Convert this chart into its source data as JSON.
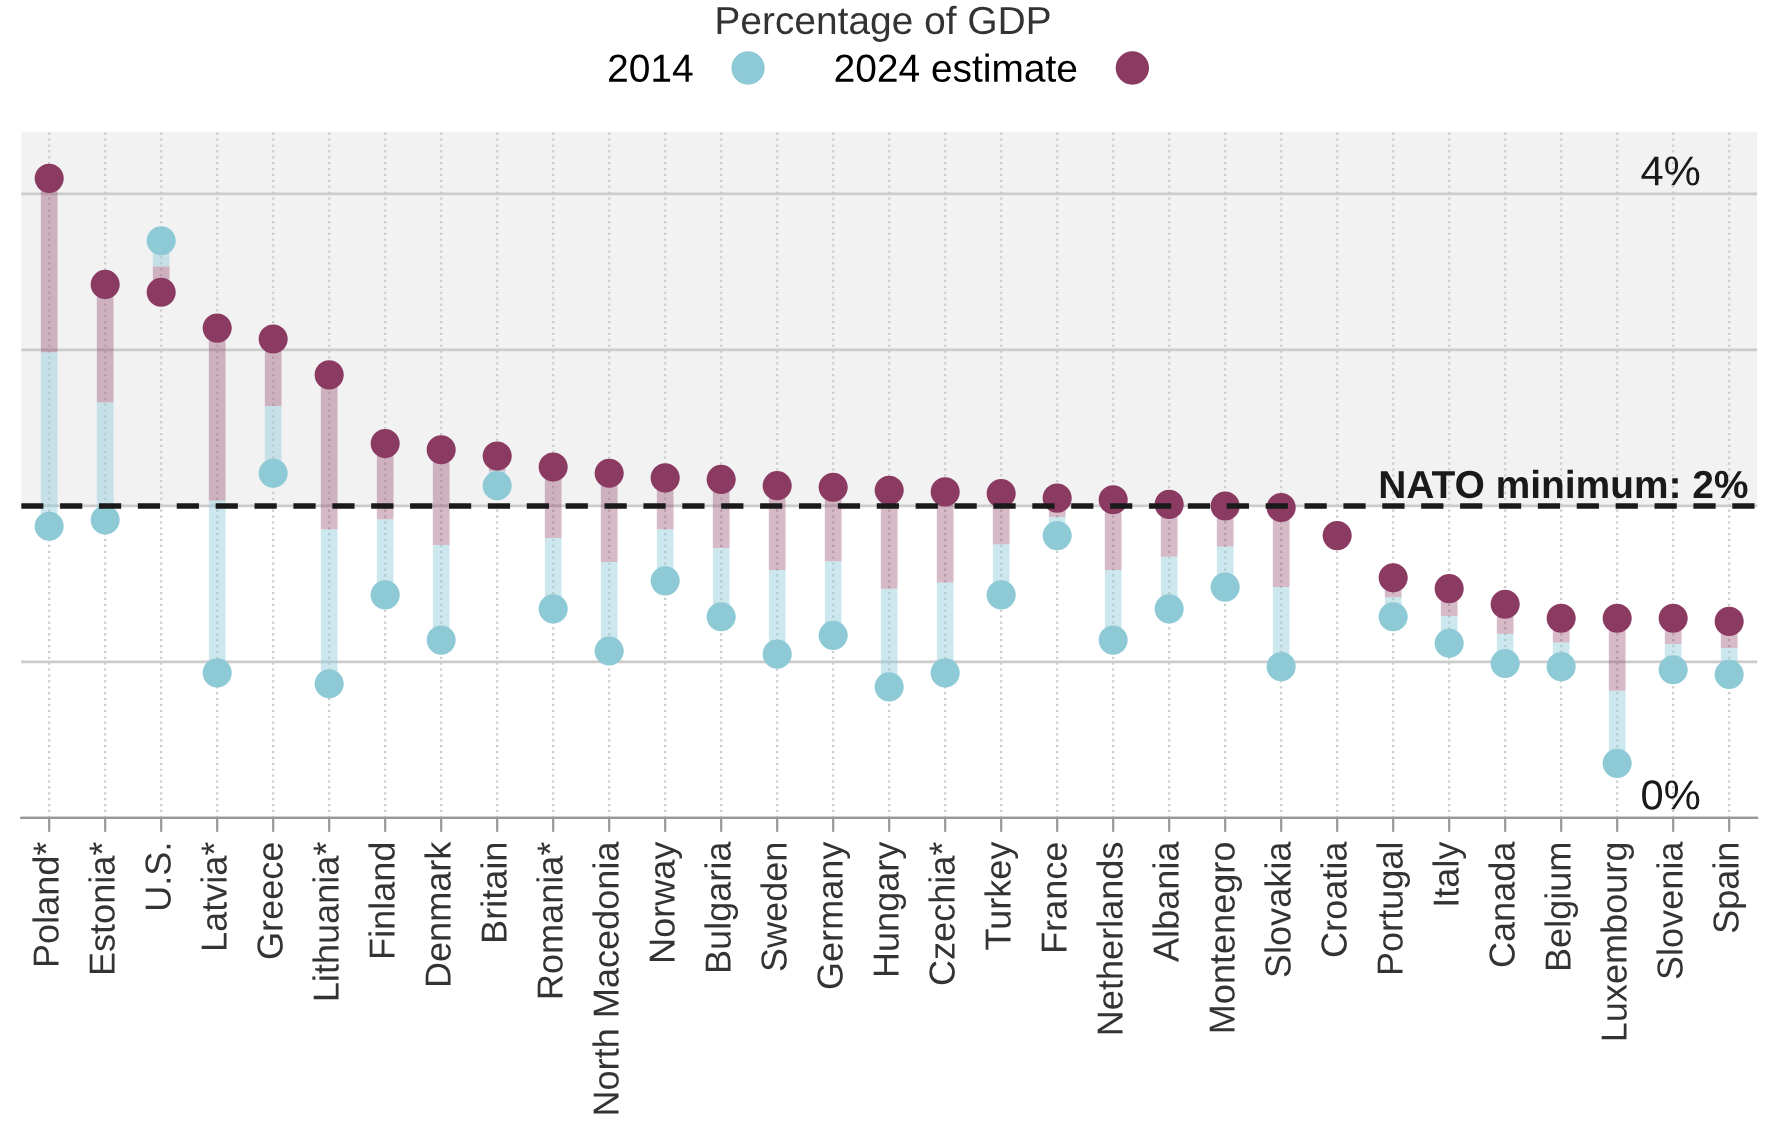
{
  "chart_data": {
    "type": "scatter",
    "title": "Percentage of GDP",
    "categories": [
      "Poland*",
      "Estonia*",
      "U.S.",
      "Latvia*",
      "Greece",
      "Lithuania*",
      "Finland",
      "Denmark",
      "Britain",
      "Romania*",
      "North Macedonia",
      "Norway",
      "Bulgaria",
      "Sweden",
      "Germany",
      "Hungary",
      "Czechia*",
      "Turkey",
      "France",
      "Netherlands",
      "Albania",
      "Montenegro",
      "Slovakia",
      "Croatia",
      "Portugal",
      "Italy",
      "Canada",
      "Belgium",
      "Luxembourg",
      "Slovenia",
      "Spain"
    ],
    "series": [
      {
        "name": "2014",
        "color": "#8ecad6",
        "values": [
          1.87,
          1.91,
          3.7,
          0.93,
          2.21,
          0.86,
          1.43,
          1.14,
          2.13,
          1.34,
          1.07,
          1.52,
          1.29,
          1.05,
          1.17,
          0.84,
          0.93,
          1.43,
          1.81,
          1.14,
          1.34,
          1.48,
          0.97,
          null,
          1.29,
          1.12,
          0.99,
          0.97,
          0.35,
          0.95,
          0.92
        ]
      },
      {
        "name": "2024 estimate",
        "color": "#8b3a62",
        "values": [
          4.1,
          3.42,
          3.37,
          3.14,
          3.07,
          2.84,
          2.4,
          2.36,
          2.32,
          2.25,
          2.21,
          2.18,
          2.17,
          2.13,
          2.12,
          2.1,
          2.09,
          2.08,
          2.05,
          2.04,
          2.01,
          2.0,
          1.99,
          1.81,
          1.54,
          1.47,
          1.37,
          1.28,
          1.28,
          1.28,
          1.26
        ]
      }
    ],
    "ylim": [
      0,
      4.4
    ],
    "yticks": [
      {
        "value": 0,
        "label": "0%"
      },
      {
        "value": 1,
        "label": null
      },
      {
        "value": 2,
        "label": null
      },
      {
        "value": 3,
        "label": null
      },
      {
        "value": 4,
        "label": "4%"
      }
    ],
    "ref_lines": [
      {
        "axis": "y",
        "value": 2,
        "label": "NATO minimum: 2%",
        "color": "#1a1a1a",
        "line_style": "dashed"
      }
    ],
    "bands": [
      {
        "axis": "y",
        "from": 2,
        "to": 4.4,
        "color": "#f2f2f2"
      }
    ],
    "grid": true,
    "legend": "top",
    "marker": "circle"
  }
}
